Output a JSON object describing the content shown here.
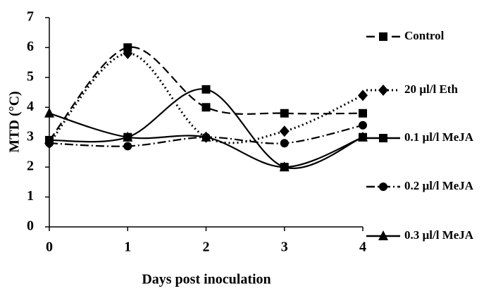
{
  "chart_data": {
    "type": "line",
    "x_label": "Days post inoculation",
    "y_label": "MTD (°C)",
    "x": [
      0,
      1,
      2,
      3,
      4
    ],
    "xlim": [
      0,
      4
    ],
    "xticks": [
      0,
      1,
      2,
      3,
      4
    ],
    "ylim": [
      0,
      7
    ],
    "yticks": [
      0,
      1,
      2,
      3,
      4,
      5,
      6,
      7
    ],
    "smooth": true,
    "legend": "right",
    "series": [
      {
        "name": "Control",
        "color": "#000000",
        "dash": "dashed",
        "marker": "square",
        "values": [
          2.9,
          6.0,
          4.0,
          3.8,
          3.8
        ]
      },
      {
        "name": "20 µl/l Eth",
        "color": "#000000",
        "dash": "dotted",
        "marker": "diamond",
        "values": [
          2.8,
          5.8,
          3.0,
          3.2,
          4.4
        ]
      },
      {
        "name": "0.1 µl/l MeJA",
        "color": "#000000",
        "dash": "solid",
        "marker": "square",
        "values": [
          2.9,
          3.0,
          4.6,
          2.0,
          3.0
        ]
      },
      {
        "name": "0.2 µl/l MeJA",
        "color": "#000000",
        "dash": "dashdot",
        "marker": "circle",
        "values": [
          2.8,
          2.7,
          3.0,
          2.8,
          3.4
        ]
      },
      {
        "name": "0.3 µl/l MeJA",
        "color": "#000000",
        "dash": "solid",
        "marker": "triangle",
        "values": [
          3.8,
          3.0,
          3.0,
          2.0,
          3.0
        ]
      }
    ]
  }
}
